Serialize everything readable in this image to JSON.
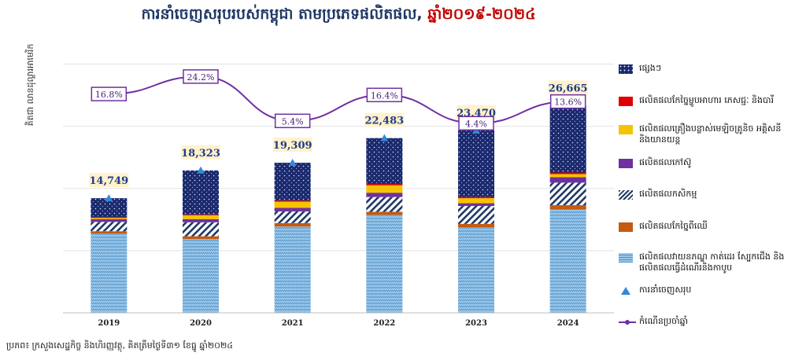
{
  "title_main": "ការនាំចេញសរុបរបស់កម្ពុជា តាមប្រភេទផលិតផល,",
  "title_years": "ឆ្នាំ២០១៩-២០២៤",
  "source": "ប្រភព៖ ក្រសួងសេដ្ឋកិច្ច និងហិរញ្ញវត្ថុ, គិតត្រឹមថ្ងៃទី៣១ ខែធ្នូ ឆ្នាំ២០២៤",
  "colors": {
    "other": "#1a2a6c",
    "food": "#e00000",
    "electrical": "#f5c400",
    "rubber": "#7030a0",
    "agri": "#1f3864",
    "wood": "#c55a11",
    "garment": "#7fb8e0",
    "total_marker": "#2e8bd9",
    "growth_line": "#7030a0",
    "label_bg": "#fff2cc",
    "label_text": "#1f3c8c"
  },
  "chart_data": {
    "type": "bar",
    "title": "ការនាំចេញសរុបរបស់កម្ពុជា តាមប្រភេទផលិតផល, ឆ្នាំ២០១៩-២០២៤",
    "ylabel": "គិតជា លានដុល្លារអាមេរិក",
    "categories": [
      "2019",
      "2020",
      "2021",
      "2022",
      "2023",
      "2024"
    ],
    "stacked": true,
    "ylim": [
      0,
      36000
    ],
    "series": [
      {
        "key": "garment",
        "name": "ផលិតផលវាយនភណ្ឌ កាត់ដេរ ស្បែកជើង និង ផលិតផលធ្វើដំណើរនិងកាបូប",
        "values": [
          10200,
          9500,
          11100,
          12600,
          11000,
          13300
        ]
      },
      {
        "key": "wood",
        "name": "ផលិតផលកែច្នៃពីឈើ",
        "values": [
          300,
          350,
          450,
          400,
          450,
          550
        ]
      },
      {
        "key": "agri",
        "name": "ផលិតផលកសិកម្ម",
        "values": [
          1200,
          1800,
          1500,
          1900,
          2300,
          2900
        ]
      },
      {
        "key": "rubber",
        "name": "ផលិតផលកៅស៊ូ",
        "values": [
          350,
          400,
          450,
          550,
          350,
          700
        ]
      },
      {
        "key": "electrical",
        "name": "ផលិតផលគ្រឿងបន្លាស់មេឡិចត្រូនិច អគ្គិសនី និងយានយន្ត",
        "values": [
          150,
          500,
          800,
          950,
          650,
          400
        ]
      },
      {
        "key": "food",
        "name": "ផលិតផលកែច្នៃម្ហូបអាហារ ភេសជ្ជៈ និងបារី",
        "values": [
          100,
          100,
          150,
          180,
          170,
          200
        ]
      },
      {
        "key": "other",
        "name": "ផ្សេងៗ",
        "values": [
          2449,
          5673,
          4859,
          5903,
          8550,
          8615
        ]
      }
    ],
    "total": {
      "name": "ការនាំចេញសរុប",
      "values": [
        14749,
        18323,
        19309,
        22483,
        23470,
        26665
      ],
      "labels": [
        "14,749",
        "18,323",
        "19,309",
        "22,483",
        "23,470",
        "26,665"
      ]
    },
    "growth": {
      "name": "កំណើនប្រចាំឆ្នាំ",
      "values": [
        16.8,
        24.2,
        5.4,
        16.4,
        4.4,
        13.6
      ],
      "labels": [
        "16.8%",
        "24.2%",
        "5.4%",
        "16.4%",
        "4.4%",
        "13.6%"
      ]
    },
    "legend_position": "right",
    "grid": true
  }
}
